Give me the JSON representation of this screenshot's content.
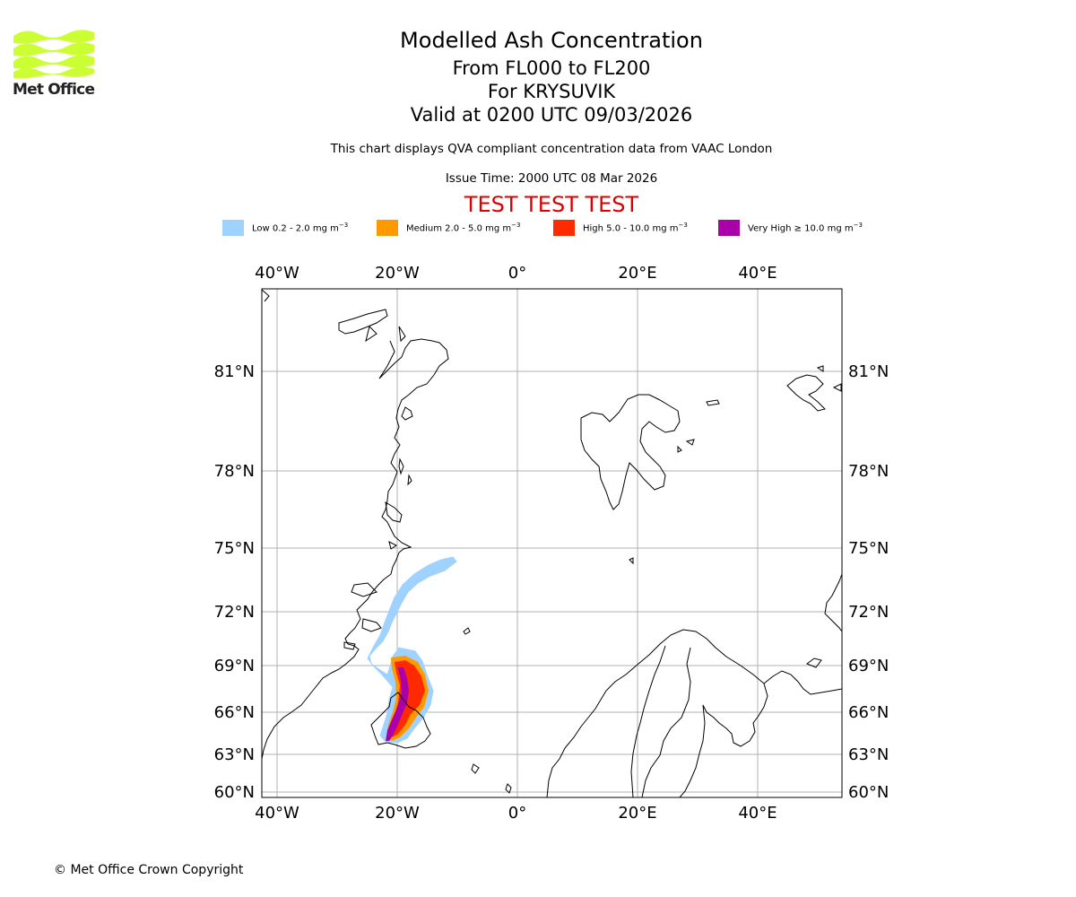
{
  "logo": {
    "text": "Met Office",
    "color": "#ccff33"
  },
  "header": {
    "title": "Modelled Ash Concentration",
    "level_range": "From FL000 to FL200",
    "volcano": "For KRYSUVIK",
    "valid_time": "Valid at 0200 UTC 09/03/2026",
    "description": "This chart displays QVA compliant concentration data from VAAC London",
    "issue_time": "Issue Time: 2000 UTC 08 Mar 2026",
    "test_banner": "TEST TEST TEST"
  },
  "legend": [
    {
      "label": "Low 0.2 - 2.0 mg m",
      "unit_exp": "−3",
      "color": "#a0d2ff"
    },
    {
      "label": "Medium 2.0 - 5.0 mg m",
      "unit_exp": "−3",
      "color": "#ff9900"
    },
    {
      "label": "High 5.0 - 10.0 mg m",
      "unit_exp": "−3",
      "color": "#ff2a00"
    },
    {
      "label": "Very High  ≥  10.0 mg m",
      "unit_exp": "−3",
      "color": "#aa00aa"
    }
  ],
  "map": {
    "lon_labels": [
      "40°W",
      "20°W",
      "0°",
      "20°E",
      "40°E"
    ],
    "lat_labels": [
      "81°N",
      "78°N",
      "75°N",
      "72°N",
      "69°N",
      "66°N",
      "63°N",
      "60°N"
    ]
  },
  "footer": {
    "copyright": "© Met Office Crown Copyright"
  }
}
